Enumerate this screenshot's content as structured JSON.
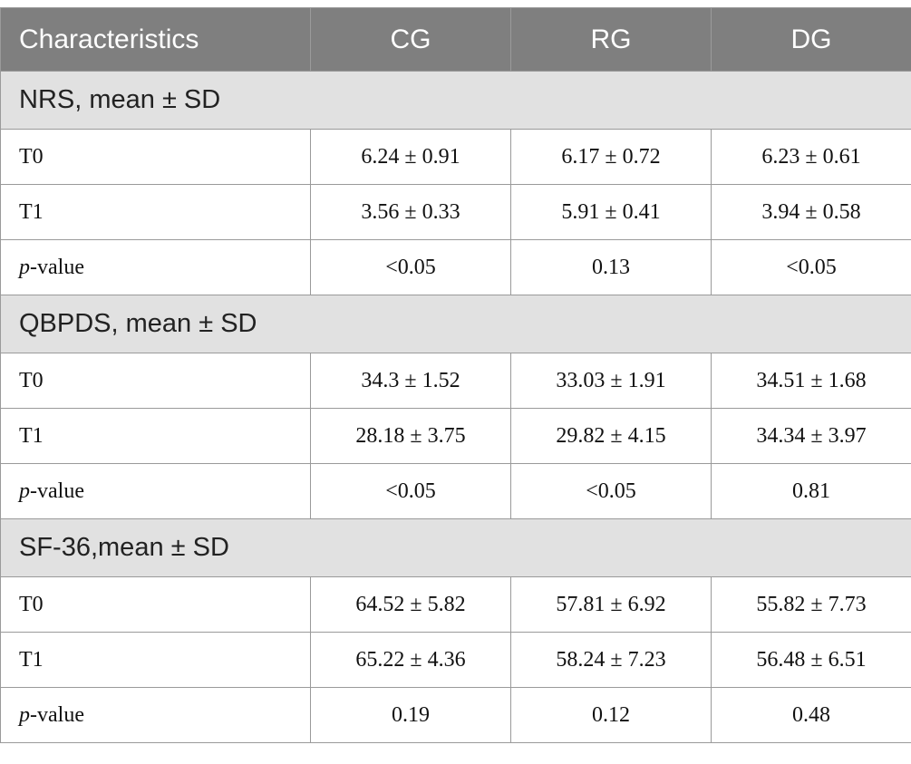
{
  "table": {
    "header": [
      "Characteristics",
      "CG",
      "RG",
      "DG"
    ],
    "sections": [
      {
        "title": "NRS, mean ± SD",
        "rows": [
          {
            "label": "T0",
            "cells": [
              "6.24 ± 0.91",
              "6.17 ± 0.72",
              "6.23 ± 0.61"
            ]
          },
          {
            "label": "T1",
            "cells": [
              "3.56 ± 0.33",
              "5.91 ± 0.41",
              "3.94 ± 0.58"
            ]
          },
          {
            "label": {
              "italic": "p",
              "rest": "-value"
            },
            "cells": [
              "<0.05",
              "0.13",
              "<0.05"
            ]
          }
        ]
      },
      {
        "title": "QBPDS, mean ± SD",
        "rows": [
          {
            "label": "T0",
            "cells": [
              "34.3 ± 1.52",
              "33.03 ± 1.91",
              "34.51 ± 1.68"
            ]
          },
          {
            "label": "T1",
            "cells": [
              "28.18 ± 3.75",
              "29.82 ± 4.15",
              "34.34 ± 3.97"
            ]
          },
          {
            "label": {
              "italic": "p",
              "rest": "-value"
            },
            "cells": [
              "<0.05",
              "<0.05",
              "0.81"
            ]
          }
        ]
      },
      {
        "title": "SF-36,mean ± SD",
        "rows": [
          {
            "label": "T0",
            "cells": [
              "64.52 ± 5.82",
              "57.81 ± 6.92",
              "55.82 ± 7.73"
            ]
          },
          {
            "label": "T1",
            "cells": [
              "65.22 ± 4.36",
              "58.24 ± 7.23",
              "56.48 ± 6.51"
            ]
          },
          {
            "label": {
              "italic": "p",
              "rest": "-value"
            },
            "cells": [
              "0.19",
              "0.12",
              "0.48"
            ]
          }
        ]
      }
    ]
  }
}
